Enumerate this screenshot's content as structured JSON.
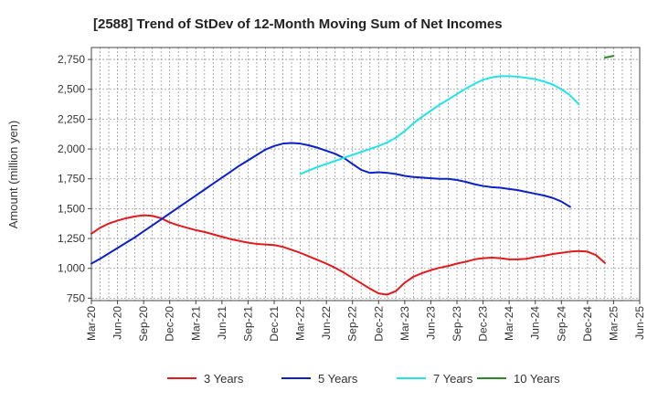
{
  "chart_data": {
    "type": "line",
    "title": "[2588]  Trend of StDev of 12-Month Moving Sum of Net Incomes",
    "ylabel": "Amount (million yen)",
    "xlabel": "",
    "x_ticks": [
      "Mar-20",
      "Jun-20",
      "Sep-20",
      "Dec-20",
      "Mar-21",
      "Jun-21",
      "Sep-21",
      "Dec-21",
      "Mar-22",
      "Jun-22",
      "Sep-22",
      "Dec-22",
      "Mar-23",
      "Jun-23",
      "Sep-23",
      "Dec-23",
      "Mar-24",
      "Jun-24",
      "Sep-24",
      "Dec-24",
      "Mar-25",
      "Jun-25"
    ],
    "y_ticks": [
      "750",
      "1,000",
      "1,250",
      "1,500",
      "1,750",
      "2,000",
      "2,250",
      "2,500",
      "2,750"
    ],
    "ylim": [
      730,
      2850
    ],
    "grid": true,
    "legend_position": "bottom",
    "series": [
      {
        "name": "3 Years",
        "color": "#e31a1c",
        "start_month": 0,
        "values": [
          1290,
          1340,
          1375,
          1400,
          1420,
          1435,
          1445,
          1440,
          1420,
          1385,
          1360,
          1340,
          1320,
          1305,
          1285,
          1265,
          1245,
          1230,
          1215,
          1205,
          1200,
          1195,
          1180,
          1155,
          1130,
          1100,
          1070,
          1040,
          1005,
          965,
          920,
          875,
          830,
          790,
          780,
          810,
          880,
          930,
          960,
          985,
          1005,
          1020,
          1040,
          1055,
          1075,
          1085,
          1090,
          1085,
          1075,
          1075,
          1080,
          1095,
          1105,
          1120,
          1130,
          1140,
          1145,
          1140,
          1110,
          1045
        ]
      },
      {
        "name": "5 Years",
        "color": "#0a22c8",
        "start_month": 0,
        "values": [
          1040,
          1080,
          1125,
          1170,
          1215,
          1260,
          1310,
          1360,
          1410,
          1460,
          1510,
          1560,
          1610,
          1660,
          1710,
          1760,
          1810,
          1860,
          1905,
          1950,
          1995,
          2025,
          2045,
          2050,
          2045,
          2030,
          2010,
          1985,
          1960,
          1925,
          1875,
          1825,
          1800,
          1805,
          1800,
          1790,
          1775,
          1765,
          1760,
          1755,
          1750,
          1750,
          1740,
          1725,
          1705,
          1690,
          1680,
          1675,
          1665,
          1655,
          1640,
          1625,
          1610,
          1590,
          1560,
          1515
        ]
      },
      {
        "name": "7 Years",
        "color": "#22e3ea",
        "start_month": 24,
        "values": [
          1790,
          1820,
          1850,
          1875,
          1900,
          1925,
          1950,
          1975,
          2000,
          2025,
          2055,
          2095,
          2150,
          2215,
          2270,
          2320,
          2370,
          2415,
          2460,
          2505,
          2545,
          2580,
          2600,
          2610,
          2610,
          2605,
          2595,
          2585,
          2565,
          2540,
          2500,
          2450,
          2375
        ]
      },
      {
        "name": "10 Years",
        "color": "#2a8a2a",
        "start_month": 59,
        "values": [
          2765,
          2780
        ]
      }
    ]
  }
}
